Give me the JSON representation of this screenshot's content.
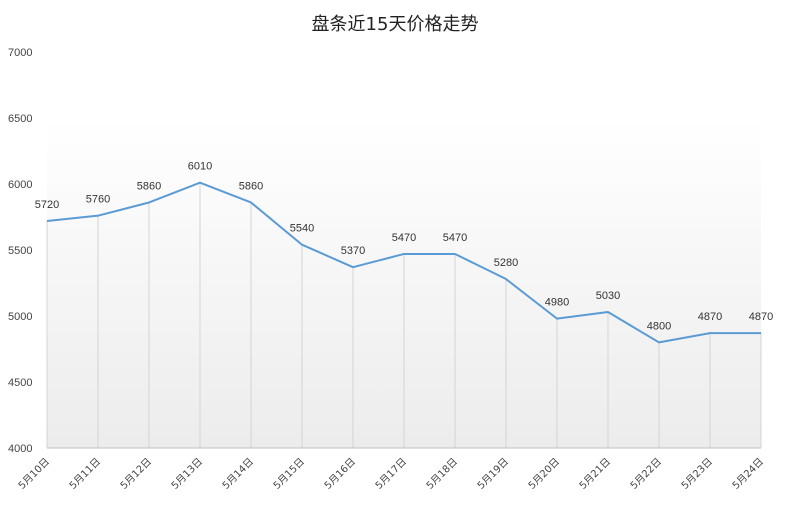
{
  "chart_data": {
    "type": "area",
    "title": "盘条近15天价格走势",
    "categories": [
      "5月10日",
      "5月11日",
      "5月12日",
      "5月13日",
      "5月14日",
      "5月15日",
      "5月16日",
      "5月17日",
      "5月18日",
      "5月19日",
      "5月20日",
      "5月21日",
      "5月22日",
      "5月23日",
      "5月24日"
    ],
    "series": [
      {
        "values": [
          5720,
          5760,
          5860,
          6010,
          5860,
          5540,
          5370,
          5470,
          5470,
          5280,
          4980,
          5030,
          4800,
          4870,
          4870
        ]
      }
    ],
    "yticks": [
      "4000",
      "4500",
      "5000",
      "5500",
      "6000",
      "6500",
      "7000"
    ],
    "ylim": [
      4000,
      7000
    ],
    "xlabel": "",
    "ylabel": "",
    "grid": "vertical",
    "legend": "none",
    "line_color": "#5b9bd5"
  }
}
